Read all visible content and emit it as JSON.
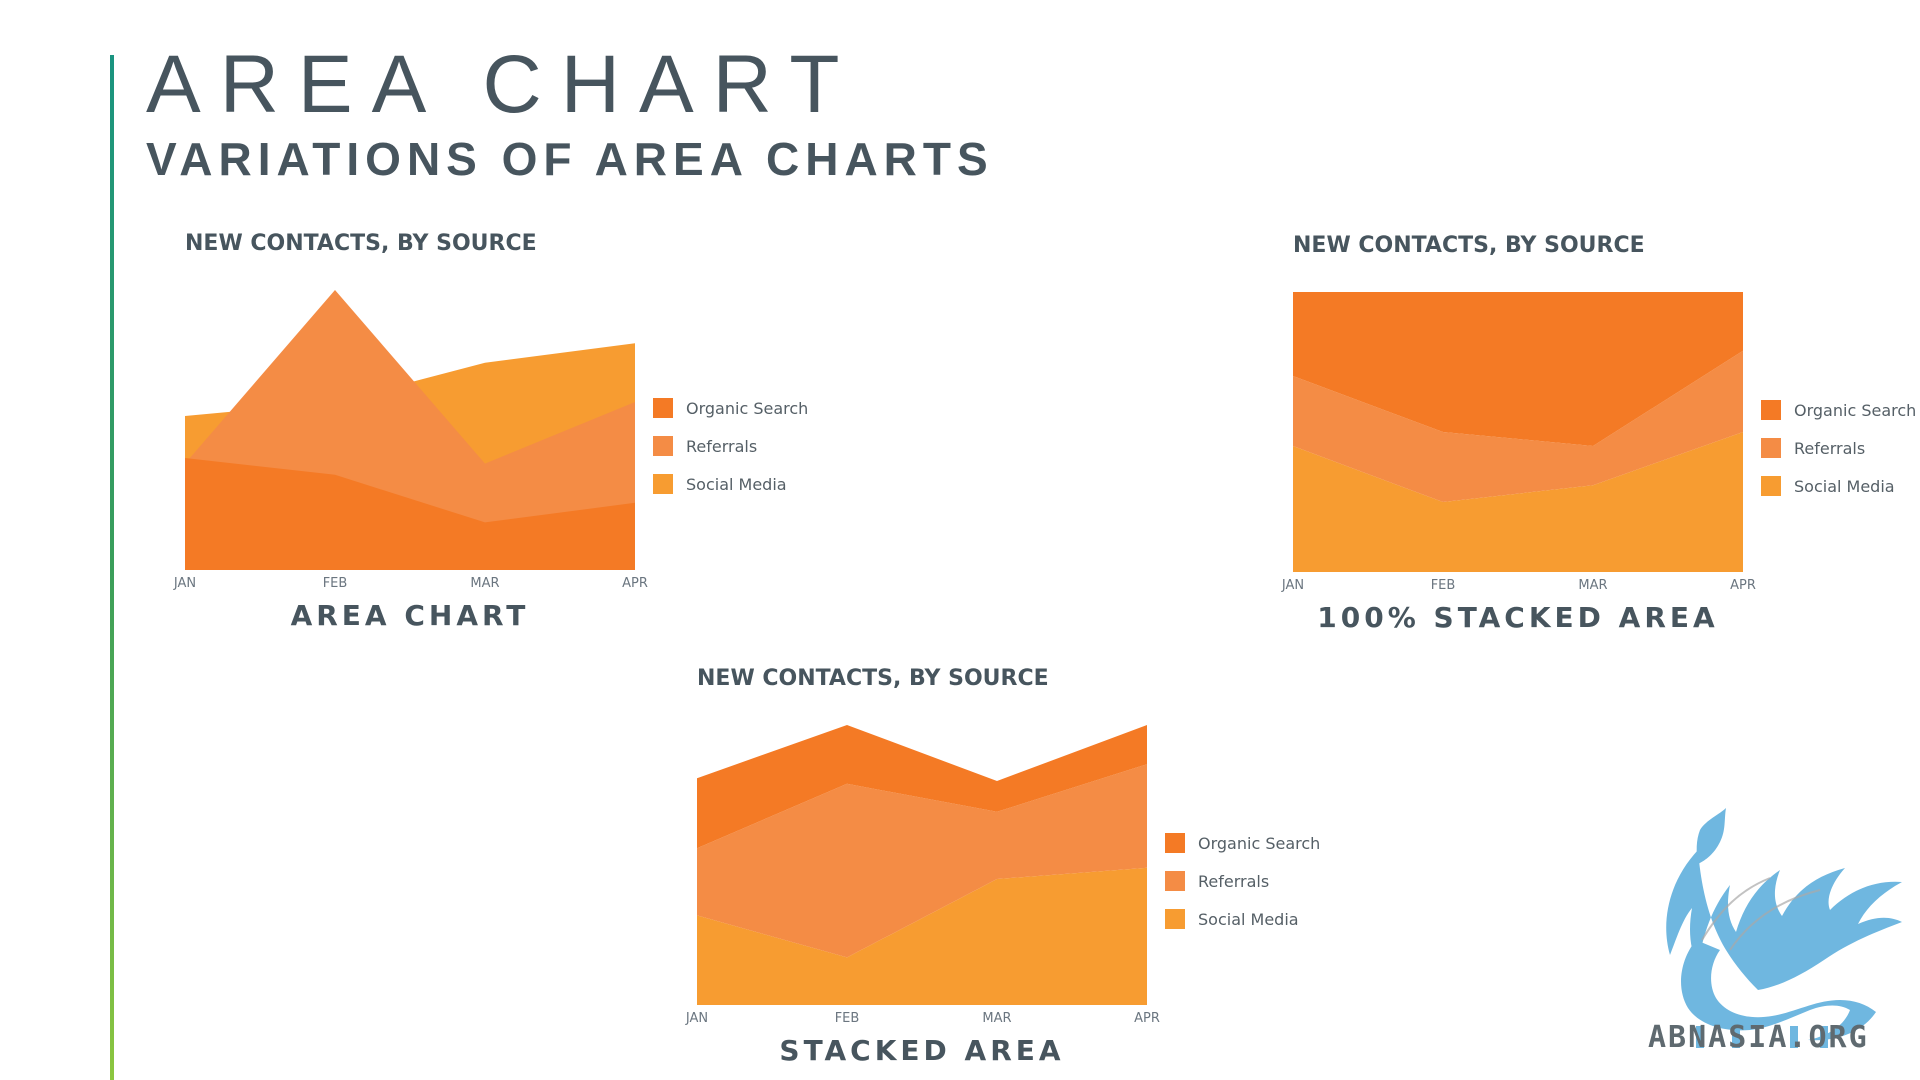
{
  "slide": {
    "title": "AREA CHART",
    "subtitle": "VARIATIONS OF AREA CHARTS",
    "watermark": "ABNASIA.ORG",
    "accent_color": "#3a9e5a"
  },
  "colors": {
    "organic": "#f47a25",
    "referrals": "#f48c45",
    "social": "#f79c31"
  },
  "chart_data": [
    {
      "type": "area",
      "mode": "overlapping",
      "title": "NEW CONTACTS, BY SOURCE",
      "caption": "AREA CHART",
      "categories": [
        "JAN",
        "FEB",
        "MAR",
        "APR"
      ],
      "ylim": [
        0,
        100
      ],
      "grid": false,
      "legend": "right",
      "series": [
        {
          "name": "Social Media",
          "values": [
            55,
            60,
            74,
            81
          ]
        },
        {
          "name": "Referrals",
          "values": [
            38,
            100,
            38,
            60
          ]
        },
        {
          "name": "Organic Search",
          "values": [
            40,
            34,
            17,
            24
          ]
        }
      ],
      "legend_order": [
        "Organic Search",
        "Referrals",
        "Social Media"
      ]
    },
    {
      "type": "area",
      "mode": "percent",
      "title": "NEW CONTACTS, BY SOURCE",
      "caption": "100% STACKED AREA",
      "categories": [
        "JAN",
        "FEB",
        "MAR",
        "APR"
      ],
      "ylim": [
        0,
        100
      ],
      "grid": false,
      "legend": "right",
      "series": [
        {
          "name": "Social Media",
          "values": [
            45,
            25,
            31,
            50
          ]
        },
        {
          "name": "Referrals",
          "values": [
            25,
            25,
            14,
            29
          ]
        },
        {
          "name": "Organic Search",
          "values": [
            30,
            50,
            55,
            21
          ]
        }
      ],
      "legend_order": [
        "Organic Search",
        "Referrals",
        "Social Media"
      ]
    },
    {
      "type": "area",
      "mode": "stacked",
      "title": "NEW CONTACTS, BY SOURCE",
      "caption": "STACKED AREA",
      "categories": [
        "JAN",
        "FEB",
        "MAR",
        "APR"
      ],
      "ylim": [
        0,
        100
      ],
      "grid": false,
      "legend": "right",
      "series": [
        {
          "name": "Social Media",
          "values": [
            32,
            17,
            45,
            49
          ]
        },
        {
          "name": "Referrals",
          "values": [
            24,
            62,
            24,
            37
          ]
        },
        {
          "name": "Organic Search",
          "values": [
            25,
            21,
            11,
            14
          ]
        }
      ],
      "legend_order": [
        "Organic Search",
        "Referrals",
        "Social Media"
      ]
    }
  ]
}
